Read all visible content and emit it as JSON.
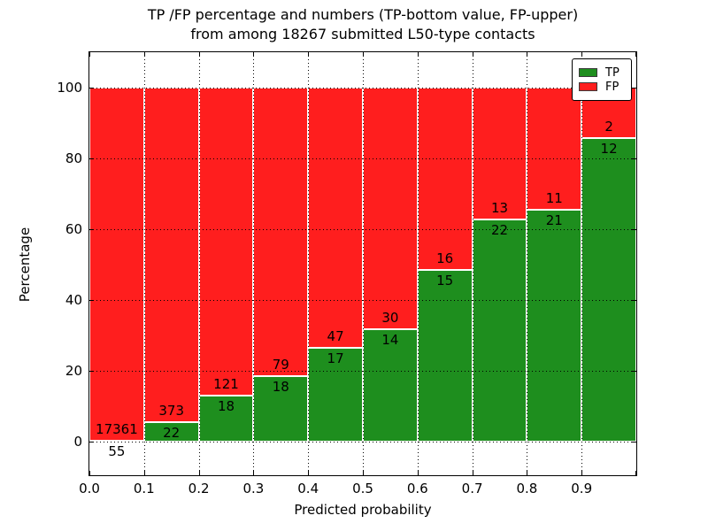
{
  "title": {
    "line1": "TP /FP percentage and numbers (TP-bottom value, FP-upper)",
    "line2": "from among 18267 submitted L50-type contacts"
  },
  "axes": {
    "xlabel": "Predicted probability",
    "ylabel": "Percentage",
    "x_tick_labels": [
      "0.0",
      "0.1",
      "0.2",
      "0.3",
      "0.4",
      "0.5",
      "0.6",
      "0.7",
      "0.8",
      "0.9"
    ],
    "y_tick_labels": [
      "0",
      "20",
      "40",
      "60",
      "80",
      "100"
    ],
    "y_tick_values": [
      0,
      20,
      40,
      60,
      80,
      100
    ]
  },
  "legend": {
    "items": [
      {
        "label": "TP",
        "color": "#1e8e1e"
      },
      {
        "label": "FP",
        "color": "#ff1e1e"
      }
    ],
    "position": "upper right"
  },
  "chart_data": {
    "type": "bar",
    "stacked": true,
    "normalized_to_percent": true,
    "title": "TP /FP percentage and numbers (TP-bottom value, FP-upper) from among 18267 submitted L50-type contacts",
    "xlabel": "Predicted probability",
    "ylabel": "Percentage",
    "categories": [
      "0.0-0.1",
      "0.1-0.2",
      "0.2-0.3",
      "0.3-0.4",
      "0.4-0.5",
      "0.5-0.6",
      "0.6-0.7",
      "0.7-0.8",
      "0.8-0.9",
      "0.9-1.0"
    ],
    "bin_width": 0.1,
    "series": [
      {
        "name": "TP",
        "color": "#1e8e1e",
        "counts": [
          55,
          22,
          18,
          18,
          17,
          14,
          15,
          22,
          21,
          12
        ]
      },
      {
        "name": "FP",
        "color": "#ff1e1e",
        "counts": [
          17361,
          373,
          121,
          79,
          47,
          30,
          16,
          13,
          11,
          2
        ]
      }
    ],
    "tp_percent_of_bin": [
      0.32,
      5.57,
      12.95,
      18.56,
      26.56,
      31.82,
      48.39,
      62.86,
      65.63,
      85.71
    ],
    "total_contacts": 18267,
    "xlim": [
      0.0,
      1.0
    ],
    "ylim": [
      -9.5,
      110
    ],
    "grid": true,
    "grid_style": "dotted",
    "legend_position": "upper right"
  }
}
